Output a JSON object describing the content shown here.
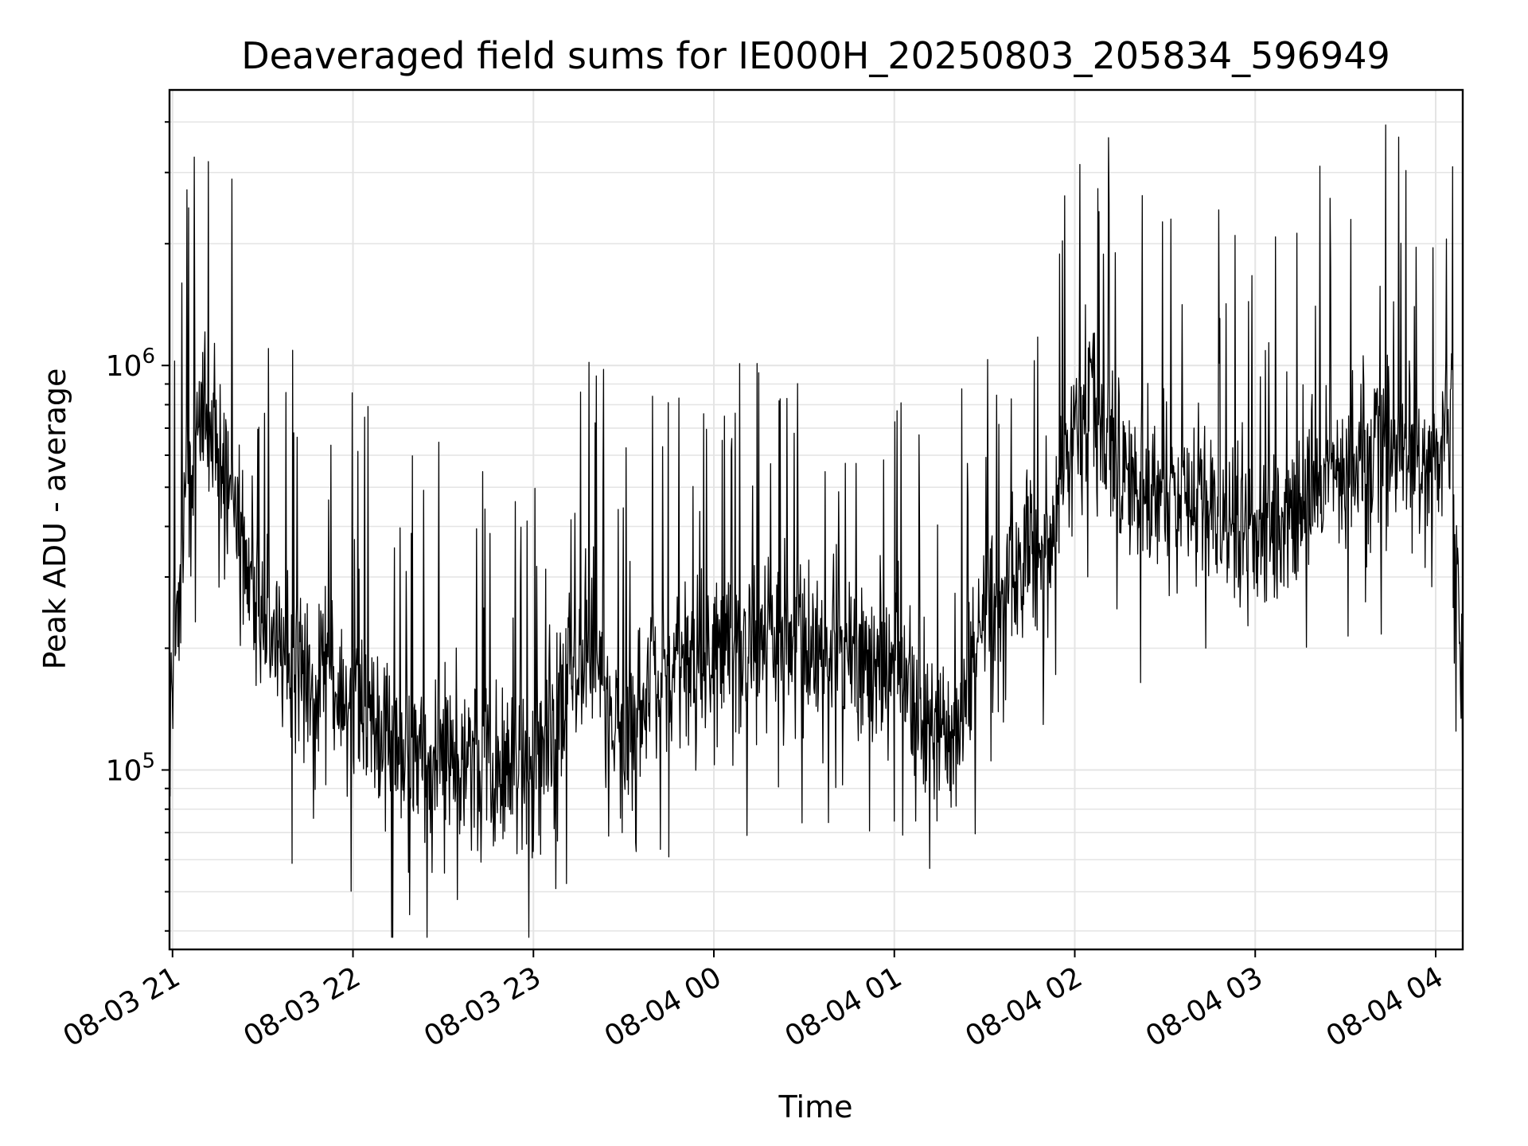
{
  "chart_data": {
    "type": "line",
    "title": "Deaveraged field sums for IE000H_20250803_205834_596949",
    "xlabel": "Time",
    "ylabel": "Peak ADU - average",
    "yscale": "log",
    "ylim": [
      36000,
      4800000
    ],
    "xlim": [
      "2025-08-03 20:59",
      "2025-08-04 04:09"
    ],
    "x_ticks": [
      {
        "label": "08-03 21",
        "time": "2025-08-03 21:00"
      },
      {
        "label": "08-03 22",
        "time": "2025-08-03 22:00"
      },
      {
        "label": "08-03 23",
        "time": "2025-08-03 23:00"
      },
      {
        "label": "08-04 00",
        "time": "2025-08-04 00:00"
      },
      {
        "label": "08-04 01",
        "time": "2025-08-04 01:00"
      },
      {
        "label": "08-04 02",
        "time": "2025-08-04 02:00"
      },
      {
        "label": "08-04 03",
        "time": "2025-08-04 03:00"
      },
      {
        "label": "08-04 04",
        "time": "2025-08-04 04:00"
      }
    ],
    "y_ticks": [
      {
        "base": "10",
        "exp": "5",
        "value": 100000
      },
      {
        "base": "10",
        "exp": "6",
        "value": 1000000
      }
    ],
    "grid": true,
    "line_color": "#000000",
    "series": [
      {
        "x": [
          "2025-08-03 20:59",
          "2025-08-03 21:05",
          "2025-08-03 21:10",
          "2025-08-03 21:15",
          "2025-08-03 21:20",
          "2025-08-03 21:25",
          "2025-08-03 21:30",
          "2025-08-03 21:35",
          "2025-08-03 21:40",
          "2025-08-03 21:45",
          "2025-08-03 21:50",
          "2025-08-03 21:55",
          "2025-08-03 22:00",
          "2025-08-03 22:10",
          "2025-08-03 22:20",
          "2025-08-03 22:30",
          "2025-08-03 22:40",
          "2025-08-03 22:50",
          "2025-08-03 23:00",
          "2025-08-03 23:10",
          "2025-08-03 23:20",
          "2025-08-03 23:30",
          "2025-08-03 23:40",
          "2025-08-03 23:50",
          "2025-08-04 00:00",
          "2025-08-04 00:10",
          "2025-08-04 00:20",
          "2025-08-04 00:30",
          "2025-08-04 00:40",
          "2025-08-04 00:50",
          "2025-08-04 01:00",
          "2025-08-04 01:10",
          "2025-08-04 01:20",
          "2025-08-04 01:30",
          "2025-08-04 01:40",
          "2025-08-04 01:50",
          "2025-08-04 02:00",
          "2025-08-04 02:05",
          "2025-08-04 02:10",
          "2025-08-04 02:20",
          "2025-08-04 02:30",
          "2025-08-04 02:40",
          "2025-08-04 02:50",
          "2025-08-04 03:00",
          "2025-08-04 03:10",
          "2025-08-04 03:20",
          "2025-08-04 03:30",
          "2025-08-04 03:40",
          "2025-08-04 03:50",
          "2025-08-04 04:00",
          "2025-08-04 04:05",
          "2025-08-04 04:09"
        ],
        "values": [
          120000,
          500000,
          800000,
          600000,
          550000,
          300000,
          220000,
          200000,
          180000,
          160000,
          150000,
          140000,
          140000,
          120000,
          110000,
          105000,
          110000,
          100000,
          100000,
          160000,
          200000,
          110000,
          170000,
          180000,
          200000,
          210000,
          220000,
          210000,
          200000,
          190000,
          180000,
          130000,
          120000,
          250000,
          300000,
          350000,
          700000,
          900000,
          650000,
          500000,
          450000,
          480000,
          420000,
          380000,
          400000,
          500000,
          600000,
          650000,
          600000,
          550000,
          800000,
          150000
        ],
        "noise_level": 0.9
      }
    ]
  }
}
